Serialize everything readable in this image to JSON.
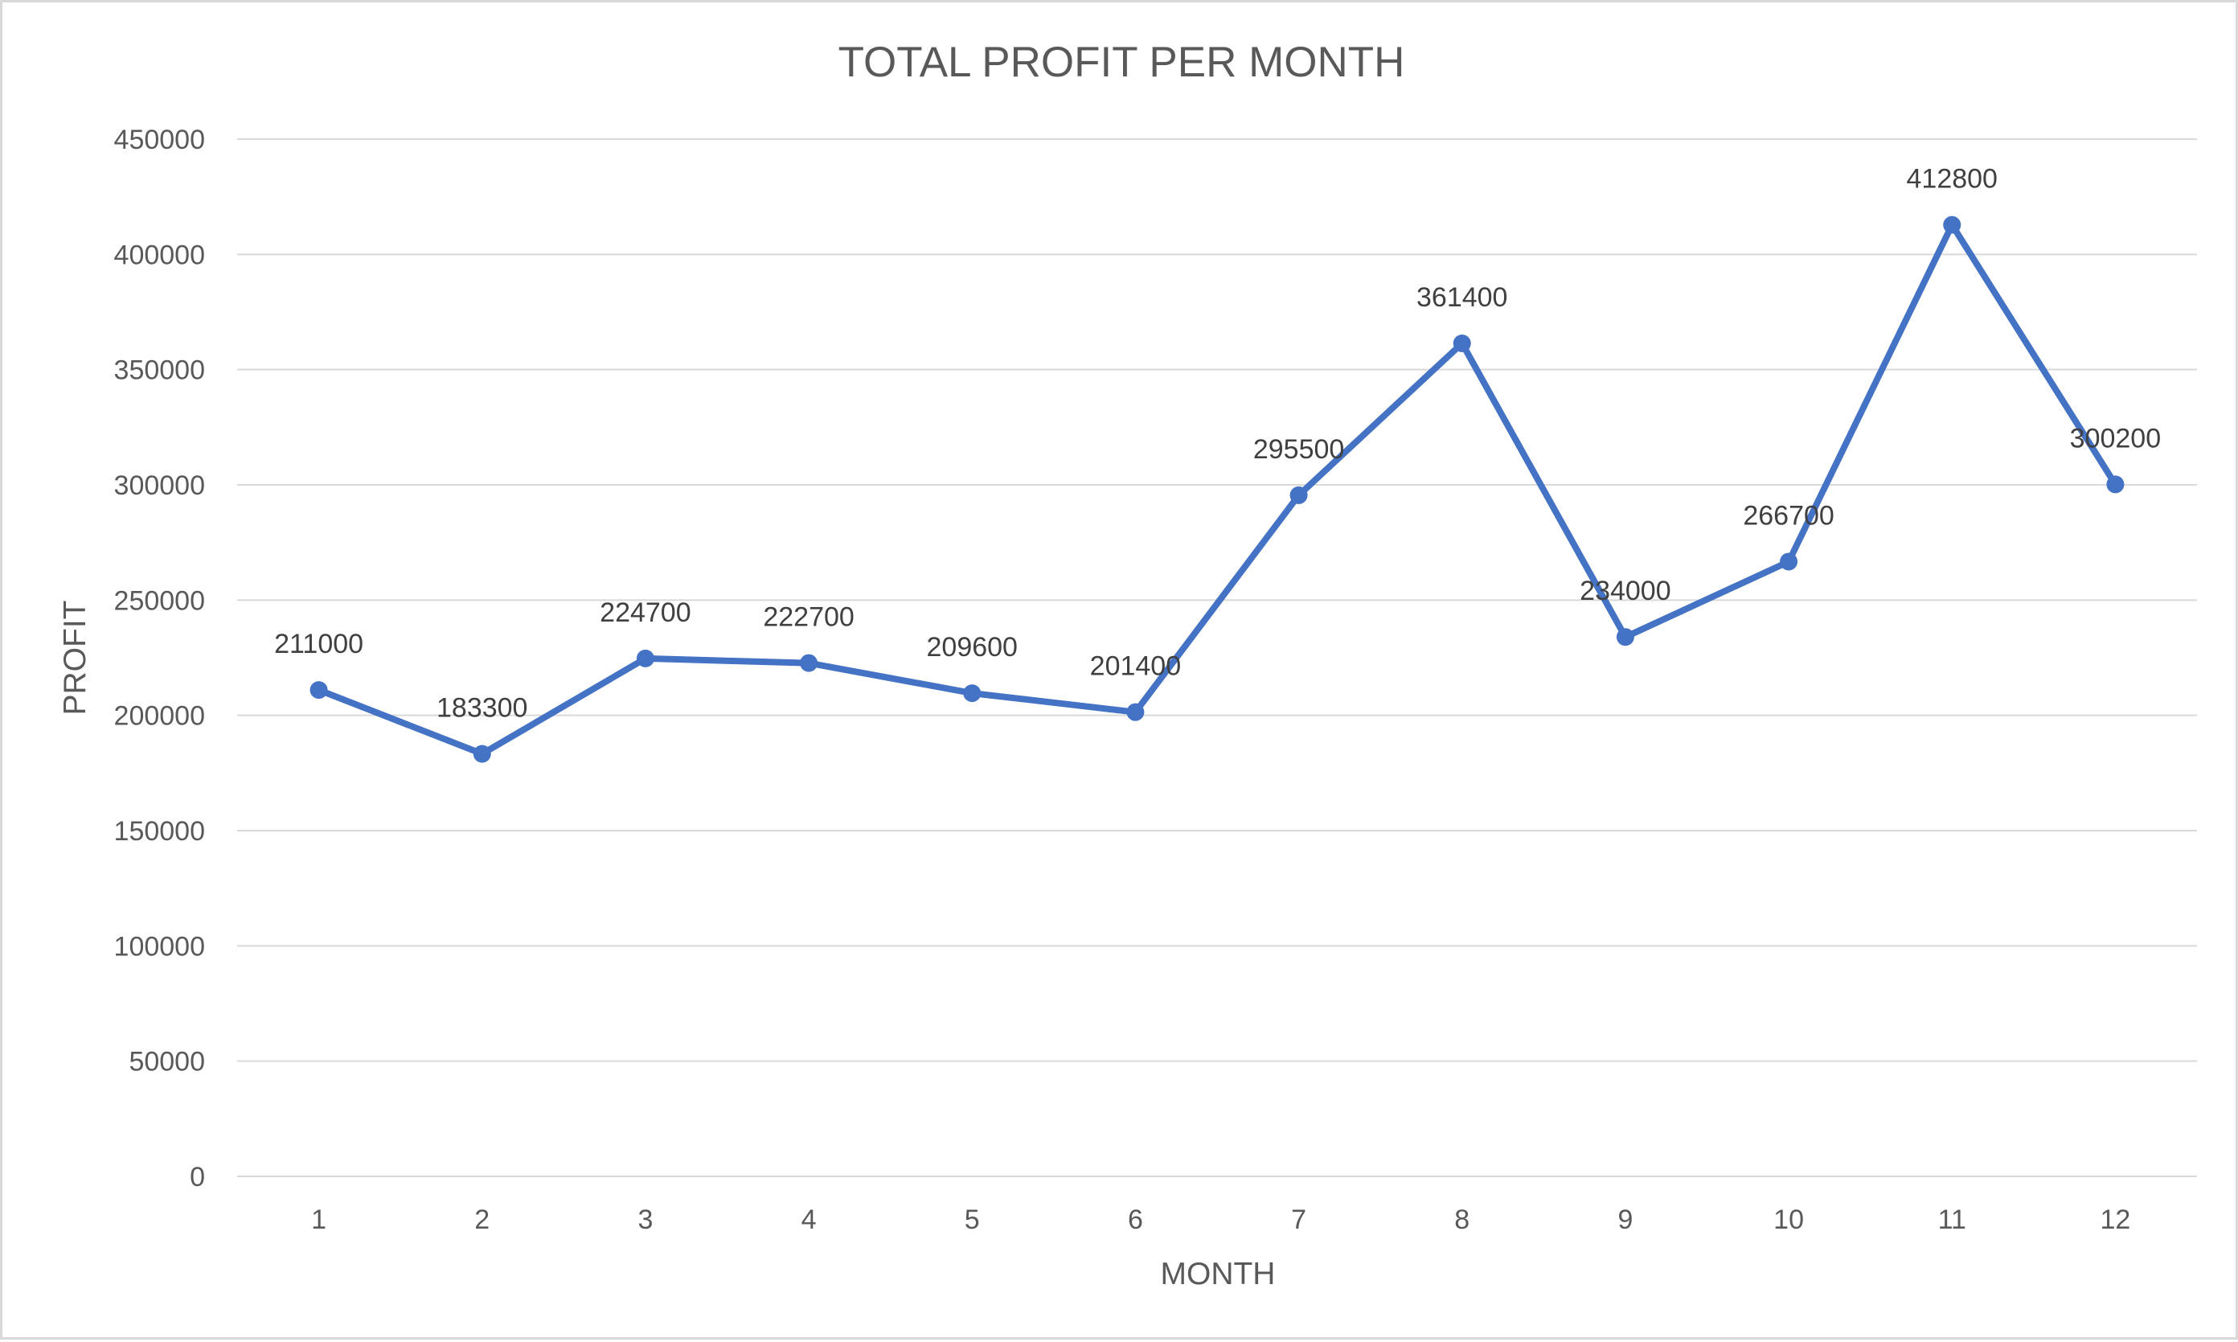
{
  "chart_data": {
    "type": "line",
    "title": "TOTAL PROFIT PER MONTH",
    "xlabel": "MONTH",
    "ylabel": "PROFIT",
    "categories": [
      "1",
      "2",
      "3",
      "4",
      "5",
      "6",
      "7",
      "8",
      "9",
      "10",
      "11",
      "12"
    ],
    "series": [
      {
        "values": [
          211000,
          183300,
          224700,
          222700,
          209600,
          201400,
          295500,
          361400,
          234000,
          266700,
          412800,
          300200
        ]
      }
    ],
    "data_labels": [
      "211000",
      "183300",
      "224700",
      "222700",
      "209600",
      "201400",
      "295500",
      "361400",
      "234000",
      "266700",
      "412800",
      "300200"
    ],
    "y_ticks": [
      "0",
      "50000",
      "100000",
      "150000",
      "200000",
      "250000",
      "300000",
      "350000",
      "400000",
      "450000"
    ],
    "ylim": [
      0,
      450000
    ],
    "grid": "horizontal",
    "legend": "none",
    "colors": {
      "series_line": "#4472c4",
      "gridline": "#d9d9d9",
      "text": "#595959"
    }
  }
}
